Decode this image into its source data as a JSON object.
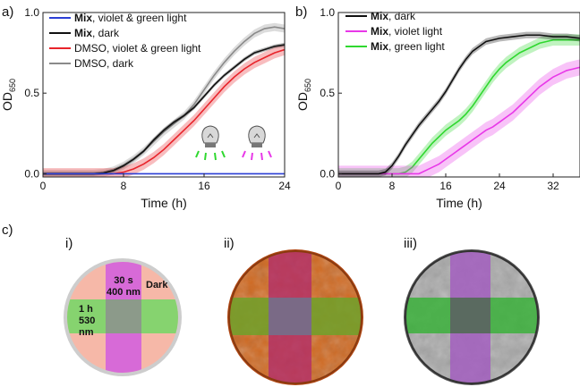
{
  "panel_labels": {
    "a": "a)",
    "b": "b)",
    "c": "c)",
    "i": "i)",
    "ii": "ii)",
    "iii": "iii)"
  },
  "colors": {
    "blue": "#2b3fd6",
    "black": "#111111",
    "red": "#e8242b",
    "gray": "#8a8a8a",
    "magenta": "#e838e8",
    "green": "#2fd82f",
    "plate_pink": "#f6b8a8",
    "plate_violet": "#d76ad7",
    "plate_green": "#86d36f",
    "plate_overlap": "#8c9a8a",
    "plate_rim": "#cdcdcd"
  },
  "chart_data": [
    {
      "id": "a",
      "type": "line",
      "xlabel": "Time (h)",
      "ylabel": "OD",
      "ylabel_sub": "650",
      "xlim": [
        0,
        24
      ],
      "ylim": [
        -0.02,
        1.0
      ],
      "xticks": [
        0,
        8,
        16,
        24
      ],
      "yticks": [
        0.0,
        0.5,
        1.0
      ],
      "xtick_labels": [
        "0",
        "8",
        "16",
        "24"
      ],
      "ytick_labels": [
        "0.0",
        "0.5",
        "1.0"
      ],
      "legend_position": "top-left",
      "series": [
        {
          "name_bold": "Mix",
          "name_rest": ", violet & green light",
          "color": "#2b3fd6",
          "band": 0.003,
          "x": [
            0,
            4,
            8,
            12,
            16,
            20,
            24
          ],
          "y": [
            0.0,
            0.0,
            0.0,
            0.0,
            0.0,
            0.0,
            0.0
          ]
        },
        {
          "name_bold": "Mix",
          "name_rest": ", dark",
          "color": "#111111",
          "band": 0.012,
          "x": [
            0,
            5,
            6,
            7,
            8,
            9,
            10,
            11,
            12,
            13,
            14,
            15,
            16,
            17,
            18,
            19,
            20,
            21,
            22,
            23,
            24
          ],
          "y": [
            0.0,
            0.0,
            0.005,
            0.02,
            0.05,
            0.09,
            0.14,
            0.21,
            0.27,
            0.32,
            0.36,
            0.41,
            0.48,
            0.55,
            0.61,
            0.66,
            0.71,
            0.75,
            0.77,
            0.79,
            0.8
          ]
        },
        {
          "name_bold": "",
          "name_rest": "DMSO, violet & green light",
          "color": "#e8242b",
          "band": 0.035,
          "x": [
            0,
            7,
            8,
            9,
            10,
            11,
            12,
            13,
            14,
            15,
            16,
            17,
            18,
            19,
            20,
            21,
            22,
            23,
            24
          ],
          "y": [
            0.0,
            0.0,
            0.01,
            0.03,
            0.06,
            0.1,
            0.15,
            0.21,
            0.27,
            0.33,
            0.4,
            0.47,
            0.54,
            0.6,
            0.65,
            0.69,
            0.72,
            0.75,
            0.77
          ]
        },
        {
          "name_bold": "",
          "name_rest": "DMSO, dark",
          "color": "#8a8a8a",
          "band": 0.025,
          "x": [
            0,
            5,
            6,
            7,
            8,
            9,
            10,
            11,
            12,
            13,
            14,
            15,
            16,
            17,
            18,
            19,
            20,
            21,
            22,
            23,
            24
          ],
          "y": [
            0.0,
            0.0,
            0.005,
            0.02,
            0.05,
            0.09,
            0.14,
            0.2,
            0.26,
            0.31,
            0.36,
            0.43,
            0.52,
            0.61,
            0.69,
            0.76,
            0.82,
            0.87,
            0.9,
            0.91,
            0.9
          ]
        }
      ]
    },
    {
      "id": "b",
      "type": "line",
      "xlabel": "Time (h)",
      "ylabel": "OD",
      "ylabel_sub": "650",
      "xlim": [
        0,
        36
      ],
      "ylim": [
        -0.02,
        1.0
      ],
      "xticks": [
        0,
        8,
        16,
        24,
        32
      ],
      "yticks": [
        0.0,
        0.5,
        1.0
      ],
      "xtick_labels": [
        "0",
        "8",
        "16",
        "24",
        "32"
      ],
      "ytick_labels": [
        "0.0",
        "0.5",
        "1.0"
      ],
      "legend_position": "top-left",
      "series": [
        {
          "name_bold": "Mix",
          "name_rest": ", dark",
          "color": "#111111",
          "band": 0.02,
          "x": [
            0,
            6,
            7,
            8,
            9,
            10,
            11,
            12,
            13,
            14,
            15,
            16,
            17,
            18,
            19,
            20,
            21,
            22,
            24,
            26,
            28,
            30,
            32,
            34,
            36
          ],
          "y": [
            0.0,
            0.0,
            0.01,
            0.05,
            0.11,
            0.18,
            0.24,
            0.3,
            0.35,
            0.4,
            0.45,
            0.51,
            0.58,
            0.65,
            0.71,
            0.76,
            0.79,
            0.82,
            0.84,
            0.85,
            0.86,
            0.86,
            0.85,
            0.85,
            0.84
          ]
        },
        {
          "name_bold": "Mix",
          "name_rest": ", violet light",
          "color": "#e838e8",
          "band": 0.05,
          "x": [
            0,
            12,
            13,
            14,
            15,
            16,
            17,
            18,
            19,
            20,
            21,
            22,
            23,
            24,
            25,
            26,
            27,
            28,
            29,
            30,
            31,
            32,
            33,
            34,
            35,
            36
          ],
          "y": [
            0.0,
            0.0,
            0.02,
            0.04,
            0.06,
            0.09,
            0.12,
            0.15,
            0.18,
            0.21,
            0.24,
            0.27,
            0.29,
            0.32,
            0.35,
            0.38,
            0.42,
            0.46,
            0.5,
            0.54,
            0.57,
            0.6,
            0.62,
            0.64,
            0.65,
            0.66
          ]
        },
        {
          "name_bold": "Mix",
          "name_rest": ", green light",
          "color": "#2fd82f",
          "band": 0.035,
          "x": [
            0,
            9,
            10,
            11,
            12,
            13,
            14,
            15,
            16,
            17,
            18,
            19,
            20,
            21,
            22,
            23,
            24,
            25,
            26,
            27,
            28,
            29,
            30,
            31,
            32,
            33,
            34,
            35,
            36
          ],
          "y": [
            0.0,
            0.0,
            0.01,
            0.04,
            0.09,
            0.14,
            0.19,
            0.23,
            0.27,
            0.3,
            0.33,
            0.37,
            0.42,
            0.48,
            0.54,
            0.6,
            0.65,
            0.69,
            0.72,
            0.75,
            0.77,
            0.79,
            0.81,
            0.82,
            0.83,
            0.83,
            0.83,
            0.83,
            0.83
          ]
        }
      ]
    }
  ],
  "plates": {
    "labels": {
      "dark": "Dark",
      "violet_time": "30 s",
      "violet_wl": "400 nm",
      "green_time": "1 h",
      "green_wl_1": "530",
      "green_wl_2": "nm"
    }
  }
}
